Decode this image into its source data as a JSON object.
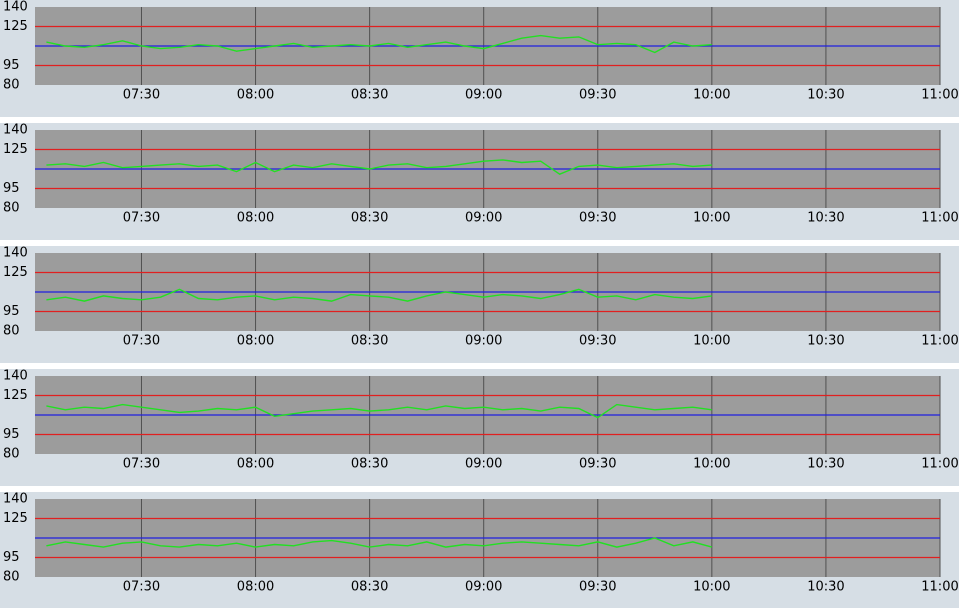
{
  "chart_data": [
    {
      "type": "line",
      "x": [
        "07:05",
        "07:10",
        "07:15",
        "07:20",
        "07:25",
        "07:30",
        "07:35",
        "07:40",
        "07:45",
        "07:50",
        "07:55",
        "08:00",
        "08:05",
        "08:10",
        "08:15",
        "08:20",
        "08:25",
        "08:30",
        "08:35",
        "08:40",
        "08:45",
        "08:50",
        "08:55",
        "09:00",
        "09:05",
        "09:10",
        "09:15",
        "09:20",
        "09:25",
        "09:30",
        "09:35",
        "09:40",
        "09:45",
        "09:50",
        "09:55",
        "10:00"
      ],
      "series": [
        {
          "color": "#22e022",
          "values": [
            113,
            110,
            109,
            111,
            114,
            110,
            108,
            109,
            111,
            110,
            106,
            108,
            110,
            112,
            109,
            110,
            111,
            110,
            112,
            109,
            111,
            113,
            110,
            108,
            112,
            116,
            118,
            116,
            117,
            111,
            112,
            111,
            105,
            113,
            110,
            111
          ]
        }
      ],
      "xlim": [
        "07:02",
        "11:00"
      ],
      "xticks": [
        "07:30",
        "08:00",
        "08:30",
        "09:00",
        "09:30",
        "10:00",
        "10:30",
        "11:00"
      ],
      "ylim": [
        80,
        140
      ],
      "yticks": [
        80,
        95,
        125,
        140
      ],
      "hlines": [
        {
          "value": 95,
          "color": "#e02020"
        },
        {
          "value": 125,
          "color": "#e02020"
        },
        {
          "value": 110,
          "color": "#2020e0"
        }
      ],
      "grid": true
    },
    {
      "type": "line",
      "x": [
        "07:05",
        "07:10",
        "07:15",
        "07:20",
        "07:25",
        "07:30",
        "07:35",
        "07:40",
        "07:45",
        "07:50",
        "07:55",
        "08:00",
        "08:05",
        "08:10",
        "08:15",
        "08:20",
        "08:25",
        "08:30",
        "08:35",
        "08:40",
        "08:45",
        "08:50",
        "08:55",
        "09:00",
        "09:05",
        "09:10",
        "09:15",
        "09:20",
        "09:25",
        "09:30",
        "09:35",
        "09:40",
        "09:45",
        "09:50",
        "09:55",
        "10:00"
      ],
      "series": [
        {
          "color": "#22e022",
          "values": [
            113,
            114,
            112,
            115,
            111,
            112,
            113,
            114,
            112,
            113,
            108,
            115,
            108,
            113,
            111,
            114,
            112,
            110,
            113,
            114,
            111,
            112,
            114,
            116,
            117,
            115,
            116,
            106,
            112,
            113,
            111,
            112,
            113,
            114,
            112,
            113
          ]
        }
      ],
      "xlim": [
        "07:02",
        "11:00"
      ],
      "xticks": [
        "07:30",
        "08:00",
        "08:30",
        "09:00",
        "09:30",
        "10:00",
        "10:30",
        "11:00"
      ],
      "ylim": [
        80,
        140
      ],
      "yticks": [
        80,
        95,
        125,
        140
      ],
      "hlines": [
        {
          "value": 95,
          "color": "#e02020"
        },
        {
          "value": 125,
          "color": "#e02020"
        },
        {
          "value": 110,
          "color": "#2020e0"
        }
      ],
      "grid": true
    },
    {
      "type": "line",
      "x": [
        "07:05",
        "07:10",
        "07:15",
        "07:20",
        "07:25",
        "07:30",
        "07:35",
        "07:40",
        "07:45",
        "07:50",
        "07:55",
        "08:00",
        "08:05",
        "08:10",
        "08:15",
        "08:20",
        "08:25",
        "08:30",
        "08:35",
        "08:40",
        "08:45",
        "08:50",
        "08:55",
        "09:00",
        "09:05",
        "09:10",
        "09:15",
        "09:20",
        "09:25",
        "09:30",
        "09:35",
        "09:40",
        "09:45",
        "09:50",
        "09:55",
        "10:00"
      ],
      "series": [
        {
          "color": "#22e022",
          "values": [
            104,
            106,
            103,
            107,
            105,
            104,
            106,
            112,
            105,
            104,
            106,
            107,
            104,
            106,
            105,
            103,
            108,
            107,
            106,
            103,
            107,
            110,
            108,
            106,
            108,
            107,
            105,
            108,
            112,
            106,
            107,
            104,
            108,
            106,
            105,
            107
          ]
        }
      ],
      "xlim": [
        "07:02",
        "11:00"
      ],
      "xticks": [
        "07:30",
        "08:00",
        "08:30",
        "09:00",
        "09:30",
        "10:00",
        "10:30",
        "11:00"
      ],
      "ylim": [
        80,
        140
      ],
      "yticks": [
        80,
        95,
        125,
        140
      ],
      "hlines": [
        {
          "value": 95,
          "color": "#e02020"
        },
        {
          "value": 125,
          "color": "#e02020"
        },
        {
          "value": 110,
          "color": "#2020e0"
        }
      ],
      "grid": true
    },
    {
      "type": "line",
      "x": [
        "07:05",
        "07:10",
        "07:15",
        "07:20",
        "07:25",
        "07:30",
        "07:35",
        "07:40",
        "07:45",
        "07:50",
        "07:55",
        "08:00",
        "08:05",
        "08:10",
        "08:15",
        "08:20",
        "08:25",
        "08:30",
        "08:35",
        "08:40",
        "08:45",
        "08:50",
        "08:55",
        "09:00",
        "09:05",
        "09:10",
        "09:15",
        "09:20",
        "09:25",
        "09:30",
        "09:35",
        "09:40",
        "09:45",
        "09:50",
        "09:55",
        "10:00"
      ],
      "series": [
        {
          "color": "#22e022",
          "values": [
            117,
            114,
            116,
            115,
            118,
            116,
            114,
            112,
            113,
            115,
            114,
            116,
            109,
            111,
            113,
            114,
            115,
            113,
            114,
            116,
            114,
            117,
            115,
            116,
            114,
            115,
            113,
            116,
            115,
            108,
            118,
            116,
            114,
            115,
            116,
            114
          ]
        }
      ],
      "xlim": [
        "07:02",
        "11:00"
      ],
      "xticks": [
        "07:30",
        "08:00",
        "08:30",
        "09:00",
        "09:30",
        "10:00",
        "10:30",
        "11:00"
      ],
      "ylim": [
        80,
        140
      ],
      "yticks": [
        80,
        95,
        125,
        140
      ],
      "hlines": [
        {
          "value": 95,
          "color": "#e02020"
        },
        {
          "value": 125,
          "color": "#e02020"
        },
        {
          "value": 110,
          "color": "#2020e0"
        }
      ],
      "grid": true
    },
    {
      "type": "line",
      "x": [
        "07:05",
        "07:10",
        "07:15",
        "07:20",
        "07:25",
        "07:30",
        "07:35",
        "07:40",
        "07:45",
        "07:50",
        "07:55",
        "08:00",
        "08:05",
        "08:10",
        "08:15",
        "08:20",
        "08:25",
        "08:30",
        "08:35",
        "08:40",
        "08:45",
        "08:50",
        "08:55",
        "09:00",
        "09:05",
        "09:10",
        "09:15",
        "09:20",
        "09:25",
        "09:30",
        "09:35",
        "09:40",
        "09:45",
        "09:50",
        "09:55",
        "10:00"
      ],
      "series": [
        {
          "color": "#22e022",
          "values": [
            104,
            107,
            105,
            103,
            106,
            107,
            104,
            103,
            105,
            104,
            106,
            103,
            105,
            104,
            107,
            108,
            106,
            103,
            105,
            104,
            107,
            103,
            105,
            104,
            106,
            107,
            106,
            105,
            104,
            107,
            103,
            106,
            110,
            104,
            107,
            103
          ]
        }
      ],
      "xlim": [
        "07:02",
        "11:00"
      ],
      "xticks": [
        "07:30",
        "08:00",
        "08:30",
        "09:00",
        "09:30",
        "10:00",
        "10:30",
        "11:00"
      ],
      "ylim": [
        80,
        140
      ],
      "yticks": [
        80,
        95,
        125,
        140
      ],
      "hlines": [
        {
          "value": 95,
          "color": "#e02020"
        },
        {
          "value": 125,
          "color": "#e02020"
        },
        {
          "value": 110,
          "color": "#2020e0"
        }
      ],
      "grid": true
    }
  ]
}
